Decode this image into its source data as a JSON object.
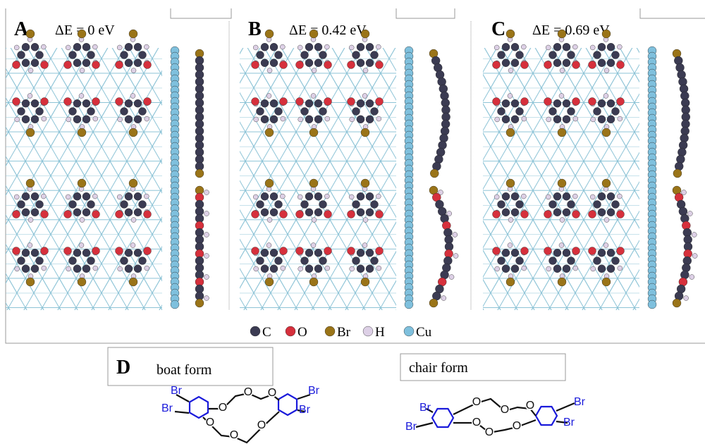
{
  "panels": [
    {
      "label": "A",
      "energy": "ΔE = 0 eV"
    },
    {
      "label": "B",
      "energy": "ΔE = 0.42 eV"
    },
    {
      "label": "C",
      "energy": "ΔE = 0.69 eV"
    }
  ],
  "legend": [
    "C",
    "O",
    "Br",
    "H",
    "Cu"
  ],
  "scheme": {
    "label": "D",
    "boat": {
      "title": "boat form",
      "atoms": [
        "Br",
        "Br",
        "Br",
        "Br",
        "O",
        "O",
        "O",
        "O",
        "O",
        "O"
      ]
    },
    "chair": {
      "title": "chair form",
      "atoms": [
        "Br",
        "Br",
        "Br",
        "Br",
        "O",
        "O",
        "O",
        "O",
        "O",
        "O"
      ]
    }
  }
}
